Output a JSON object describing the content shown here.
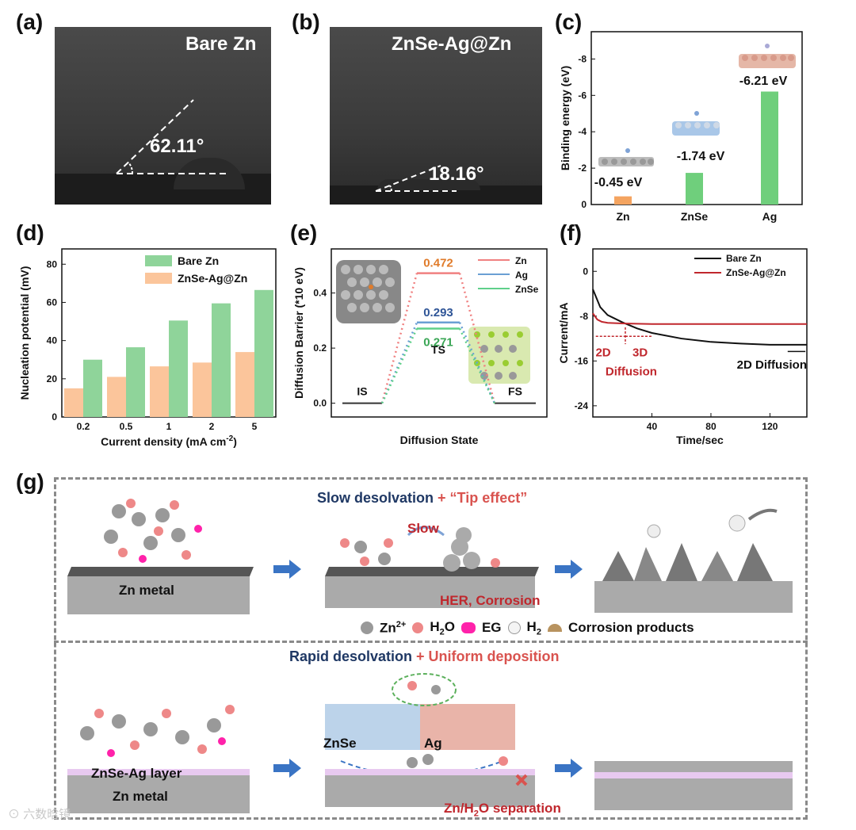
{
  "panels": {
    "a": {
      "label": "(a)",
      "title": "Bare Zn",
      "angle": "62.11°"
    },
    "b": {
      "label": "(b)",
      "title": "ZnSe-Ag@Zn",
      "angle": "18.16°"
    },
    "c": {
      "label": "(c)"
    },
    "d": {
      "label": "(d)"
    },
    "e": {
      "label": "(e)"
    },
    "f": {
      "label": "(f)"
    },
    "g": {
      "label": "(g)"
    }
  },
  "chart_data": [
    {
      "id": "c",
      "type": "bar",
      "categories": [
        "Zn",
        "ZnSe",
        "Ag"
      ],
      "values": [
        -0.45,
        -1.74,
        -6.21
      ],
      "value_labels": [
        "-0.45 eV",
        "-1.74 eV",
        "-6.21 eV"
      ],
      "ylabel": "Binding energy (eV)",
      "yticks": [
        0,
        -2,
        -4,
        -6,
        -8
      ],
      "ylim": [
        0,
        -9.5
      ],
      "colors": [
        "#f4a460",
        "#6fcf7c",
        "#6fcf7c"
      ]
    },
    {
      "id": "d",
      "type": "bar",
      "categories": [
        "0.2",
        "0.5",
        "1",
        "2",
        "5"
      ],
      "series": [
        {
          "name": "ZnSe-Ag@Zn",
          "values": [
            15,
            21,
            26.5,
            28.5,
            34
          ],
          "color": "#fbc59b"
        },
        {
          "name": "Bare Zn",
          "values": [
            30,
            36.5,
            50.5,
            59.5,
            66.5
          ],
          "color": "#8fd49a"
        }
      ],
      "legend": [
        "Bare Zn",
        "ZnSe-Ag@Zn"
      ],
      "xlabel": "Current density (mA cm",
      "xlabel_sup": "-2",
      "xlabel_end": ")",
      "ylabel": "Nucleation potential (mV)",
      "yticks": [
        0,
        20,
        40,
        60,
        80
      ],
      "ylim": [
        0,
        88
      ]
    },
    {
      "id": "e",
      "type": "line",
      "states": [
        "IS",
        "TS",
        "FS"
      ],
      "series": [
        {
          "name": "Zn",
          "values": [
            0,
            0.472,
            0
          ],
          "label": "0.472",
          "color": "#f08080",
          "label_color": "#e07b2a"
        },
        {
          "name": "Ag",
          "values": [
            0,
            0.293,
            0
          ],
          "label": "0.293",
          "color": "#6a9fd4",
          "label_color": "#2f5597"
        },
        {
          "name": "ZnSe",
          "values": [
            0,
            0.271,
            0
          ],
          "label": "0.271",
          "color": "#5fd08a",
          "label_color": "#3aa655"
        }
      ],
      "xlabel": "Diffusion State",
      "ylabel": "Diffusion Barrier (*10 eV)",
      "yticks": [
        "0.0",
        "0.2",
        "0.4"
      ],
      "ylim": [
        -0.05,
        0.56
      ]
    },
    {
      "id": "f",
      "type": "line",
      "series": [
        {
          "name": "Bare Zn",
          "color": "#111111",
          "x": [
            0,
            5,
            10,
            20,
            30,
            40,
            60,
            80,
            100,
            120,
            145
          ],
          "y": [
            -3.2,
            -6.4,
            -7.8,
            -9.1,
            -10.2,
            -11.0,
            -12.0,
            -12.6,
            -12.9,
            -13.1,
            -13.1
          ]
        },
        {
          "name": "ZnSe-Ag@Zn",
          "color": "#c0272d",
          "x": [
            0,
            3,
            6,
            10,
            20,
            40,
            80,
            145
          ],
          "y": [
            -7.5,
            -8.6,
            -9.0,
            -9.2,
            -9.3,
            -9.4,
            -9.4,
            -9.4
          ]
        }
      ],
      "xlabel": "Time/sec",
      "ylabel": "Current/mA",
      "xticks": [
        40,
        80,
        120
      ],
      "yticks": [
        0,
        -8,
        -16,
        -24
      ],
      "xlim": [
        0,
        145
      ],
      "ylim": [
        -26,
        4
      ],
      "annotations": {
        "a2d": "2D",
        "a3d": "3D",
        "diffusion": "Diffusion",
        "right": "2D Diffusion"
      }
    }
  ],
  "g": {
    "top_title_a": "Slow desolvation",
    "top_title_b": "+ “Tip effect”",
    "slow": "Slow",
    "zn_metal": "Zn metal",
    "her": "HER, Corrosion",
    "legend": {
      "zn": "Zn",
      "zn_sup": "2+",
      "h2o": "H",
      "h2o_sub": "2",
      "h2o_end": "O",
      "eg": "EG",
      "h2": "H",
      "h2_sub": "2",
      "corr": "Corrosion products"
    },
    "bottom_title_a": "Rapid desolvation",
    "bottom_title_b": "+ Uniform deposition",
    "znse": "ZnSe",
    "ag": "Ag",
    "layer": "ZnSe-Ag  layer",
    "zn_metal2": "Zn metal",
    "sep": "Zn/H",
    "sep_sub": "2",
    "sep_end": "O  separation"
  },
  "watermark": "六数晗镜"
}
